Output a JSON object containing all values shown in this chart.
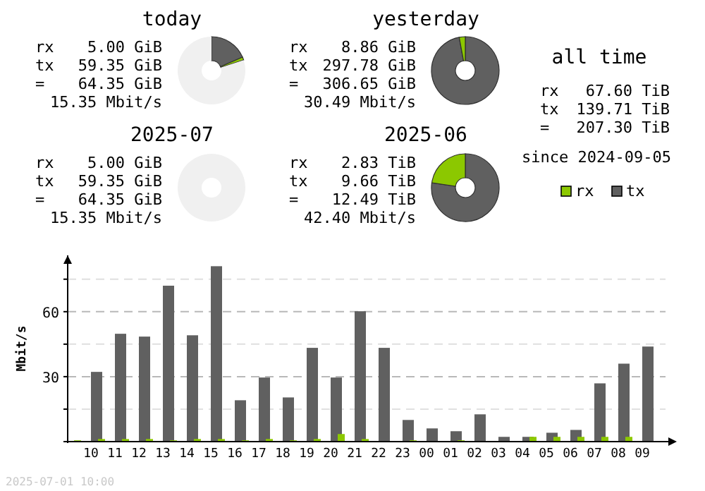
{
  "chart_data": [
    {
      "type": "donut",
      "title": "today",
      "categories": [
        null,
        null,
        null
      ],
      "values": [
        18.5,
        1.5,
        80
      ],
      "colors": [
        "#606060",
        "#8cc800",
        "#f0f0f0"
      ],
      "annotations": [
        "rx 5.00 GiB",
        "tx 59.35 GiB",
        "= 64.35 GiB",
        "15.35 Mbit/s"
      ]
    },
    {
      "type": "donut",
      "title": "yesterday",
      "categories": [
        null,
        null
      ],
      "values": [
        97.1,
        2.9
      ],
      "colors": [
        "#606060",
        "#8cc800"
      ],
      "annotations": [
        "rx 8.86 GiB",
        "tx 297.78 GiB",
        "= 306.65 GiB",
        "30.49 Mbit/s"
      ]
    },
    {
      "type": "other",
      "title": "all time",
      "annotations": [
        "rx 67.60 TiB",
        "tx 139.71 TiB",
        "= 207.30 TiB",
        "since 2024-09-05"
      ]
    },
    {
      "type": "donut",
      "title": "2025-07",
      "categories": [
        null,
        null,
        null
      ],
      "values": [
        0,
        0,
        100
      ],
      "colors": [
        "#606060",
        "#8cc800",
        "#f0f0f0"
      ],
      "annotations": [
        "rx 5.00 GiB",
        "tx 59.35 GiB",
        "= 64.35 GiB",
        "15.35 Mbit/s"
      ]
    },
    {
      "type": "donut",
      "title": "2025-06",
      "categories": [
        null,
        null
      ],
      "values": [
        77.3,
        22.7
      ],
      "colors": [
        "#606060",
        "#8cc800"
      ],
      "annotations": [
        "rx 2.83 TiB",
        "tx 9.66 TiB",
        "= 12.49 TiB",
        "42.40 Mbit/s"
      ]
    },
    {
      "type": "bar",
      "ylabel": "Mbit/s",
      "categories": [
        "10",
        "11",
        "12",
        "13",
        "14",
        "15",
        "16",
        "17",
        "18",
        "19",
        "20",
        "21",
        "22",
        "23",
        "00",
        "01",
        "02",
        "03",
        "04",
        "05",
        "06",
        "07",
        "08",
        "09"
      ],
      "series": [
        {
          "name": "rx",
          "color": "#8cc800",
          "values": [
            0.6,
            1.2,
            1.2,
            1.2,
            0.6,
            1.2,
            1.2,
            0.6,
            1.2,
            0.6,
            1.2,
            3.5,
            1.2,
            0,
            0.6,
            0,
            0.6,
            0,
            0,
            2.2,
            2.2,
            2.2,
            2.2,
            2.2
          ]
        },
        {
          "name": "tx",
          "color": "#606060",
          "values": [
            32.2,
            49.8,
            48.5,
            72,
            49.1,
            81,
            19.1,
            29.6,
            20.4,
            43.3,
            29.6,
            60.2,
            43.3,
            10,
            6.1,
            4.8,
            12.6,
            2.2,
            2.2,
            4.1,
            5.4,
            26.9,
            36,
            43.9
          ]
        }
      ],
      "ylim": [
        0,
        86
      ],
      "yticks": [
        {
          "value": 0,
          "label": null
        },
        {
          "value": 15,
          "label": null
        },
        30,
        {
          "value": 45,
          "label": null
        },
        60,
        {
          "value": 75,
          "label": null
        }
      ],
      "grid": "y",
      "legend": "top right",
      "annotations": [
        "2025-07-01 10:00"
      ]
    }
  ]
}
